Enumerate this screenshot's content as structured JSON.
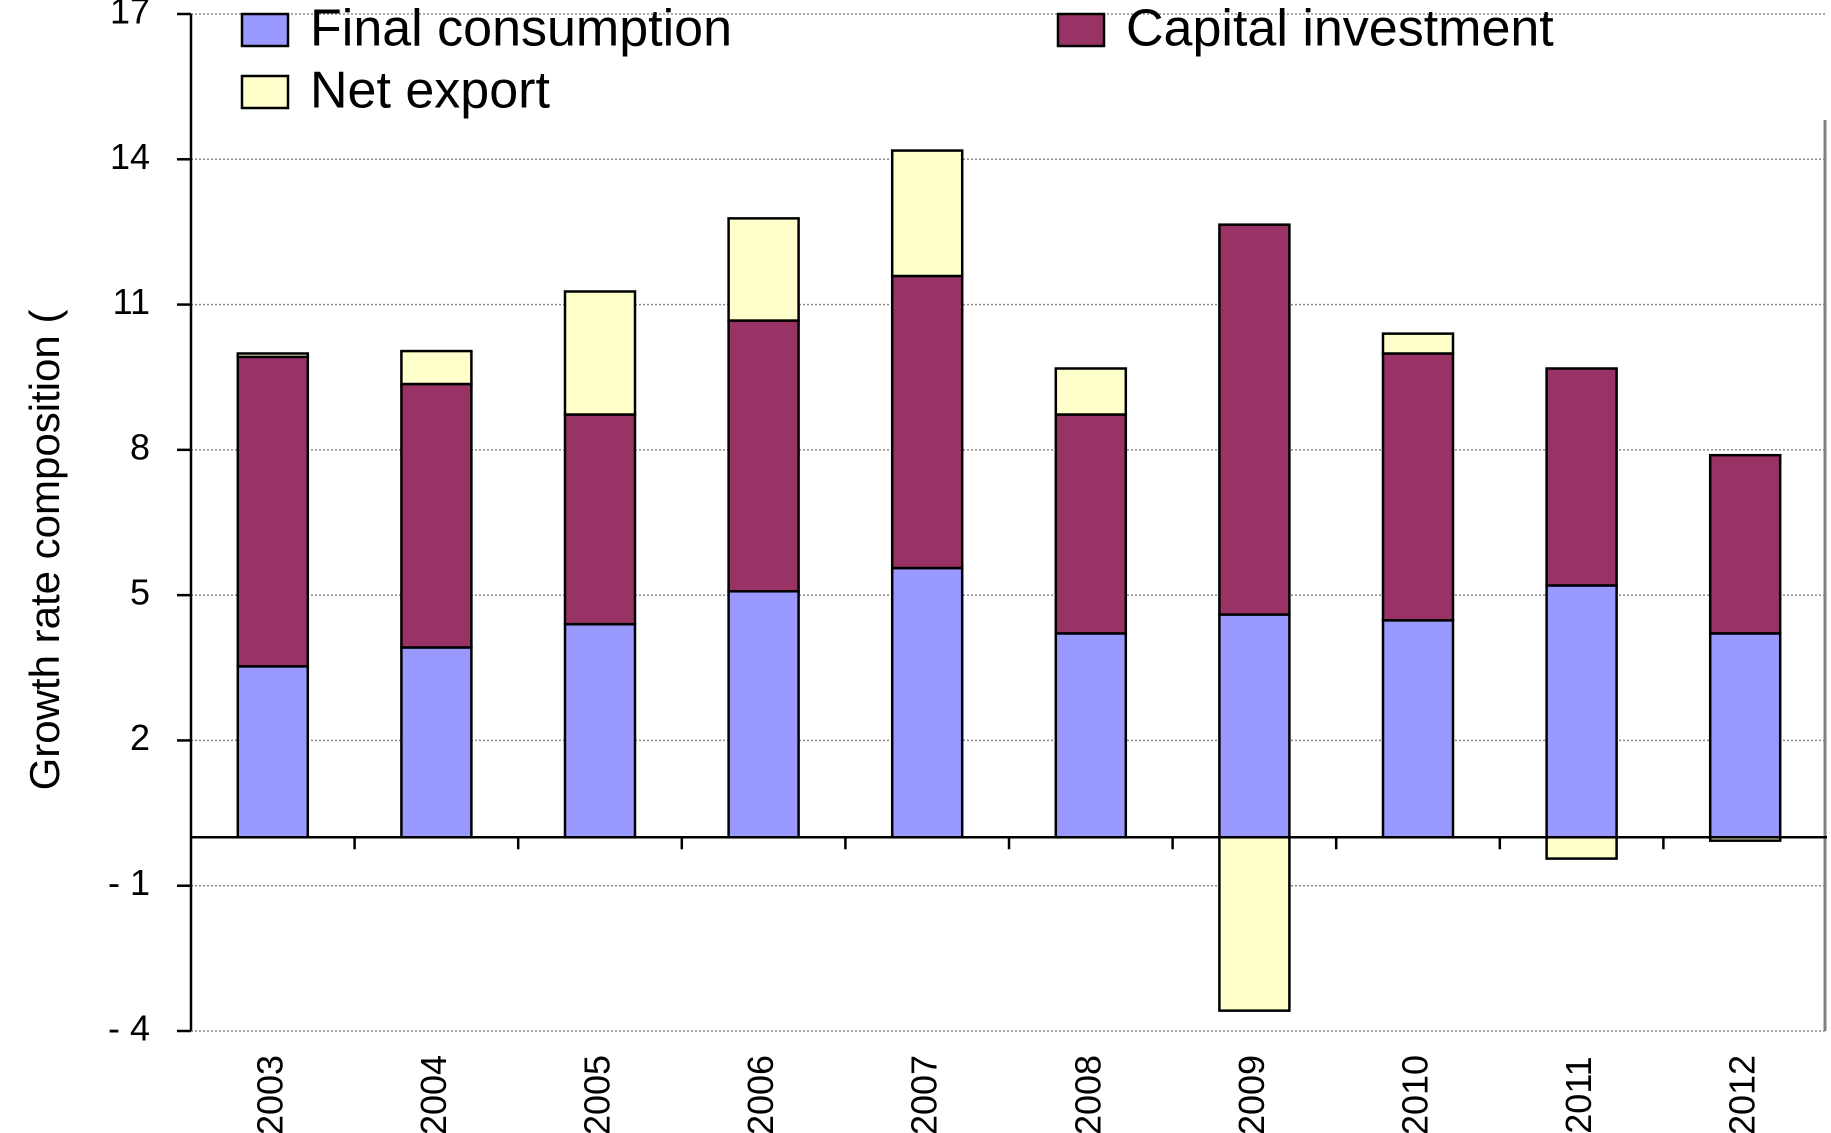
{
  "chart_data": {
    "type": "stacked_bar",
    "y_label": "Growth rate composition (",
    "categories": [
      "2003",
      "2004",
      "2005",
      "2006",
      "2007",
      "2008",
      "2009",
      "2010",
      "2011",
      "2012"
    ],
    "series": [
      {
        "name": "Final consumption",
        "color": "#9999ff",
        "values": [
          3.53,
          3.92,
          4.4,
          5.08,
          5.56,
          4.21,
          4.6,
          4.48,
          5.2,
          4.21
        ]
      },
      {
        "name": "Capital investment",
        "color": "#993366",
        "values": [
          6.39,
          5.44,
          4.33,
          5.59,
          6.03,
          4.52,
          8.05,
          5.51,
          4.48,
          3.68
        ]
      },
      {
        "name": "Net export",
        "color": "#ffffcc",
        "values": [
          0.07,
          0.68,
          2.54,
          2.11,
          2.59,
          0.95,
          -3.58,
          0.41,
          -0.44,
          -0.07
        ]
      }
    ],
    "ylim": [
      -4,
      17
    ],
    "yticks": [
      {
        "value": -4,
        "label": "- 4"
      },
      {
        "value": -1,
        "label": "- 1"
      },
      2,
      5,
      8,
      11,
      14,
      17
    ],
    "grid": true
  }
}
